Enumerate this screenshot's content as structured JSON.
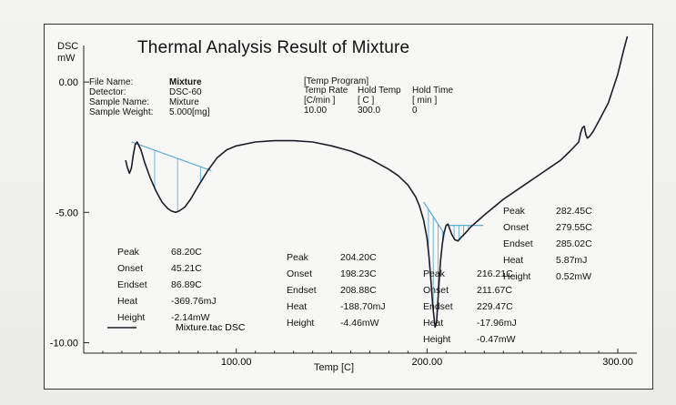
{
  "chart_data": {
    "type": "line",
    "title": "Thermal Analysis Result of Mixture",
    "ylabel_line1": "DSC",
    "ylabel_line2": "mW",
    "xlabel": "Temp  [C]",
    "xlim": [
      20,
      310
    ],
    "ylim": [
      -10.4,
      2.1
    ],
    "xticks": [
      "100.00",
      "200.00",
      "300.00"
    ],
    "xtick_values": [
      100,
      200,
      300
    ],
    "yticks": [
      "0.00",
      "-5.00",
      "-10.00"
    ],
    "ytick_values": [
      0,
      -5,
      -10
    ],
    "grid": false,
    "legend": {
      "entry": "Mixture.tac  DSC",
      "placement": "bottom-left"
    },
    "series": [
      {
        "x": [
          42,
          43,
          44,
          45,
          46,
          47,
          48,
          50,
          52,
          55,
          58,
          61,
          64,
          66,
          68.2,
          70,
          73,
          76,
          80,
          85,
          90,
          95,
          100,
          110,
          120,
          130,
          140,
          150,
          160,
          170,
          180,
          185,
          190,
          194,
          196,
          198.2,
          200,
          201,
          202,
          203,
          204.2,
          205,
          206,
          207,
          208,
          208.9,
          210,
          211,
          211.7,
          213,
          214.5,
          216.2,
          218,
          220,
          223,
          227,
          230,
          235,
          240,
          250,
          260,
          265,
          270,
          275,
          279.5,
          280.5,
          281.5,
          282.45,
          283.2,
          284,
          285,
          287,
          290,
          295,
          300,
          303,
          305
        ],
        "y": [
          -3.0,
          -3.3,
          -3.5,
          -3.3,
          -2.8,
          -2.4,
          -2.3,
          -2.6,
          -3.1,
          -3.7,
          -4.2,
          -4.6,
          -4.85,
          -4.95,
          -5.0,
          -4.95,
          -4.8,
          -4.5,
          -4.0,
          -3.4,
          -2.9,
          -2.6,
          -2.45,
          -2.3,
          -2.25,
          -2.25,
          -2.3,
          -2.45,
          -2.65,
          -2.95,
          -3.35,
          -3.6,
          -3.95,
          -4.4,
          -4.75,
          -5.3,
          -6.0,
          -6.7,
          -7.6,
          -8.6,
          -9.4,
          -9.2,
          -8.0,
          -6.9,
          -6.2,
          -5.8,
          -5.5,
          -5.45,
          -5.6,
          -5.85,
          -6.05,
          -6.1,
          -5.95,
          -5.8,
          -5.55,
          -5.3,
          -5.1,
          -4.8,
          -4.5,
          -4.0,
          -3.5,
          -3.25,
          -3.0,
          -2.65,
          -2.3,
          -1.95,
          -1.75,
          -1.7,
          -2.0,
          -2.15,
          -2.1,
          -1.9,
          -1.5,
          -0.8,
          0.3,
          1.2,
          1.75
        ]
      }
    ],
    "baselines": [
      {
        "x": [
          45.21,
          86.89
        ],
        "y": [
          -2.3,
          -3.4
        ]
      },
      {
        "x": [
          198.23,
          208.88
        ],
        "y": [
          -4.6,
          -5.8
        ]
      },
      {
        "x": [
          211.67,
          229.47
        ],
        "y": [
          -5.5,
          -5.5
        ]
      }
    ],
    "peaks": [
      {
        "Peak": "68.20C",
        "Onset": "45.21C",
        "Endset": "86.89C",
        "Heat": "-369.76mJ",
        "Height": "-2.14mW"
      },
      {
        "Peak": "204.20C",
        "Onset": "198.23C",
        "Endset": "208.88C",
        "Heat": "-188.70mJ",
        "Height": "-4.46mW"
      },
      {
        "Peak": "216.21C",
        "Onset": "211.67C",
        "Endset": "229.47C",
        "Heat": "-17.96mJ",
        "Height": "-0.47mW"
      },
      {
        "Peak": "282.45C",
        "Onset": "279.55C",
        "Endset": "285.02C",
        "Heat": "5.87mJ",
        "Height": "0.52mW"
      }
    ],
    "peak_labels": [
      "Peak",
      "Onset",
      "Endset",
      "Heat",
      "Height"
    ]
  },
  "info": {
    "labels": [
      "File Name:",
      "Detector:",
      "Sample Name:",
      "Sample Weight:"
    ],
    "values": [
      "Mixture",
      "DSC-60",
      "Mixture",
      "5.000[mg]"
    ]
  },
  "program": {
    "header": "[Temp Program]",
    "col1": [
      "Temp Rate",
      "[C/min ]",
      "10.00"
    ],
    "col2": [
      "Hold Temp",
      "[ C   ]",
      "300.0"
    ],
    "col3": [
      "Hold Time",
      "[  min  ]",
      "0"
    ]
  },
  "colors": {
    "line": "#1c1c28",
    "baseline": "#4da3d4",
    "hatch": "#4da3d4",
    "frame": "#333333"
  }
}
